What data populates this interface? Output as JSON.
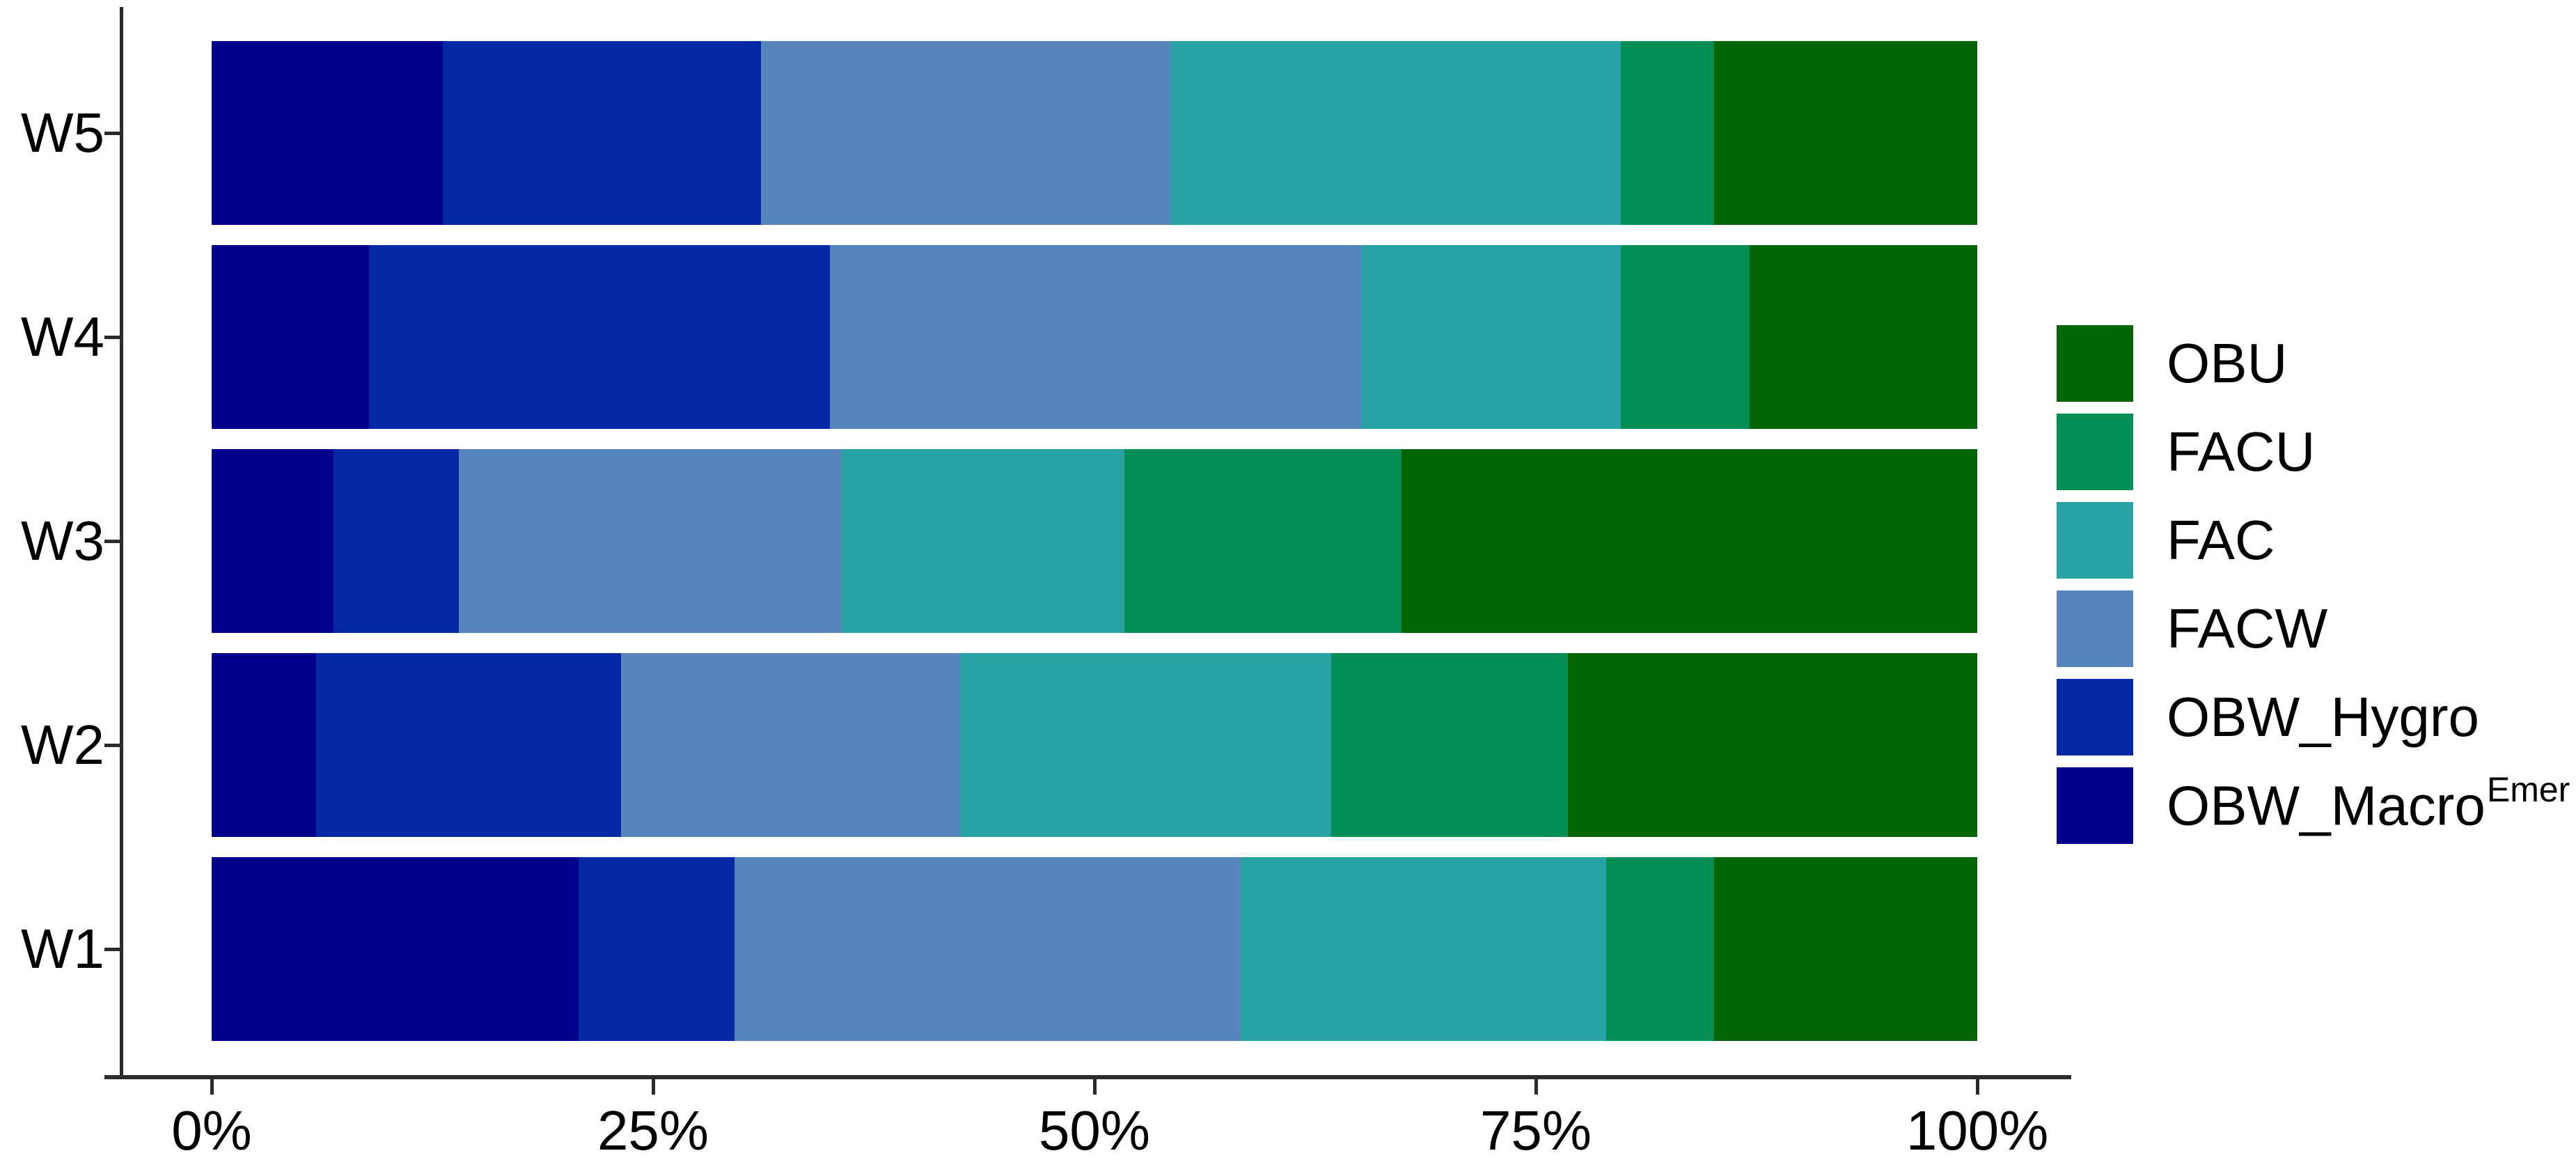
{
  "figure": {
    "background": "#ffffff",
    "axis_color": "#2b2b2b"
  },
  "x_axis": {
    "ticks": [
      {
        "value": 0,
        "label": "0%"
      },
      {
        "value": 25,
        "label": "25%"
      },
      {
        "value": 50,
        "label": "50%"
      },
      {
        "value": 75,
        "label": "75%"
      },
      {
        "value": 100,
        "label": "100%"
      }
    ]
  },
  "y_axis": {
    "labels_top_to_bottom": [
      "W5",
      "W4",
      "W3",
      "W2",
      "W1"
    ]
  },
  "legend": {
    "position": "right",
    "items_top_to_bottom": [
      "OBU",
      "FACU",
      "FAC",
      "FACW",
      "OBW_Hygro",
      "OBW_Macro"
    ]
  },
  "chart_data": {
    "type": "bar",
    "orientation": "horizontal_stacked_percent",
    "title": "",
    "xlabel": "",
    "ylabel": "",
    "xlim": [
      0,
      100
    ],
    "grid": false,
    "legend_position": "right",
    "rows_top_to_bottom": [
      "W5",
      "W4",
      "W3",
      "W2",
      "W1"
    ],
    "stack_left_to_right": [
      "OBW_Macro",
      "OBW_Hygro",
      "FACW",
      "FAC",
      "FACU",
      "OBU"
    ],
    "series": [
      {
        "id": "OBW_Macro",
        "label": "OBW_Macro",
        "label_superscript": "Emer",
        "color": "#00008b",
        "values_pct": [
          13.1,
          8.9,
          6.9,
          5.9,
          20.8
        ]
      },
      {
        "id": "OBW_Hygro",
        "label": "OBW_Hygro",
        "label_superscript": "",
        "color": "#0428a3",
        "values_pct": [
          18.0,
          26.1,
          7.1,
          17.3,
          8.8
        ]
      },
      {
        "id": "FACW",
        "label": "FACW",
        "label_superscript": "",
        "color": "#5784ba",
        "values_pct": [
          23.2,
          30.1,
          21.7,
          19.2,
          28.7
        ]
      },
      {
        "id": "FAC",
        "label": "FAC",
        "label_superscript": "",
        "color": "#28a2a2",
        "values_pct": [
          25.5,
          14.7,
          16.0,
          21.0,
          20.7
        ]
      },
      {
        "id": "FACU",
        "label": "FACU",
        "label_superscript": "",
        "color": "#018e57",
        "values_pct": [
          5.3,
          7.3,
          15.7,
          13.4,
          6.1
        ]
      },
      {
        "id": "OBU",
        "label": "OBU",
        "label_superscript": "",
        "color": "#026402",
        "values_pct": [
          14.9,
          12.9,
          32.6,
          23.2,
          14.9
        ]
      }
    ],
    "legend_top_to_bottom": [
      "OBU",
      "FACU",
      "FAC",
      "FACW",
      "OBW_Hygro",
      "OBW_Macro"
    ]
  }
}
